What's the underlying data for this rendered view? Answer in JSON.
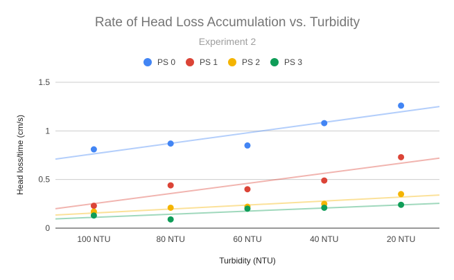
{
  "chart_data": {
    "type": "scatter",
    "title": "Rate of Head Loss Accumulation vs. Turbidity",
    "subtitle": "Experiment 2",
    "xlabel": "Turbidity (NTU)",
    "ylabel": "Head loss/time (cm/s)",
    "categories": [
      "100 NTU",
      "80 NTU",
      "60 NTU",
      "40 NTU",
      "20 NTU"
    ],
    "ylim": [
      0,
      1.5
    ],
    "yticks": [
      "0",
      "0.5",
      "1",
      "1.5"
    ],
    "ytick_values": [
      0,
      0.5,
      1,
      1.5
    ],
    "grid": true,
    "legend_position": "top",
    "trendlines": true,
    "series": [
      {
        "name": "PS 0",
        "color": "#4285f4",
        "values": [
          0.81,
          0.87,
          0.85,
          1.08,
          1.26
        ],
        "trend": [
          0.71,
          1.25
        ]
      },
      {
        "name": "PS 1",
        "color": "#db4437",
        "values": [
          0.23,
          0.44,
          0.4,
          0.49,
          0.73
        ],
        "trend": [
          0.2,
          0.72
        ]
      },
      {
        "name": "PS 2",
        "color": "#f4b400",
        "values": [
          0.17,
          0.21,
          0.22,
          0.25,
          0.35
        ],
        "trend": [
          0.135,
          0.34
        ]
      },
      {
        "name": "PS 3",
        "color": "#0f9d58",
        "values": [
          0.13,
          0.09,
          0.2,
          0.21,
          0.24
        ],
        "trend": [
          0.095,
          0.255
        ]
      }
    ]
  }
}
